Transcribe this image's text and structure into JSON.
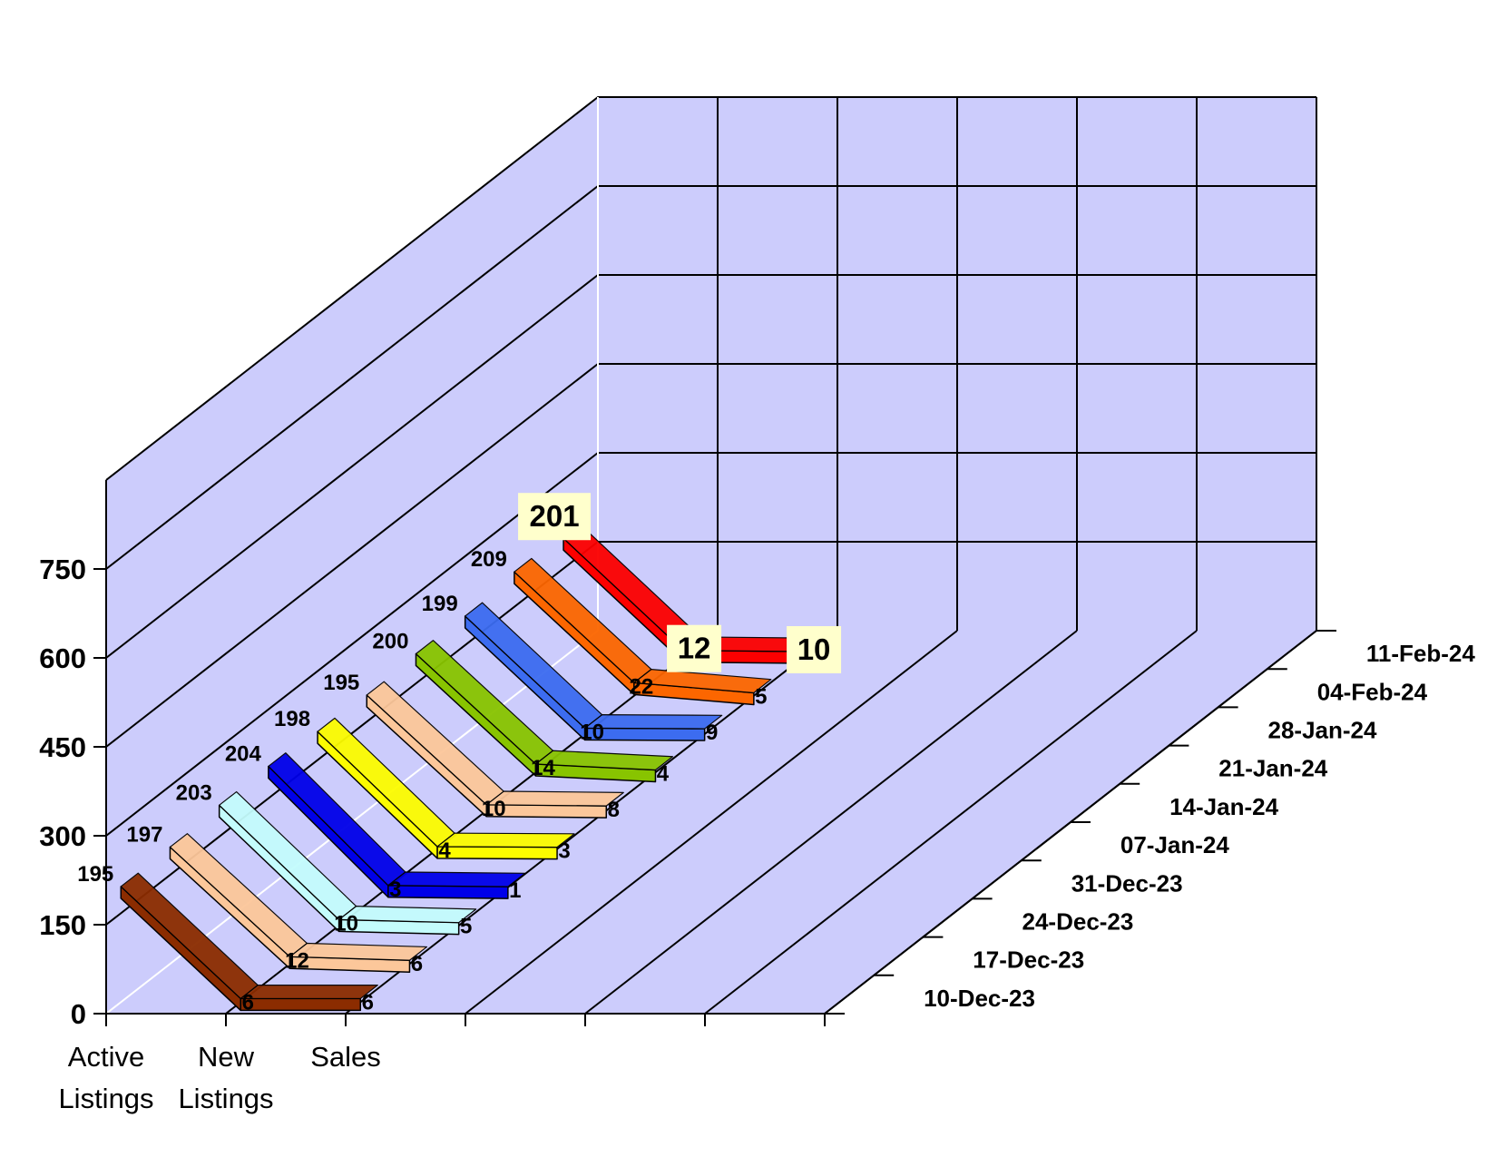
{
  "chart_data": {
    "type": "line",
    "title": "",
    "xlabel": "",
    "ylabel": "",
    "ylim": [
      0,
      900
    ],
    "y_ticks": [
      0,
      150,
      300,
      450,
      600,
      750
    ],
    "categories": [
      {
        "line1": "Active",
        "line2": "Listings"
      },
      {
        "line1": "New",
        "line2": "Listings"
      },
      {
        "line1": "Sales",
        "line2": ""
      }
    ],
    "grid": true,
    "colors": {
      "wall": "#ccccfc",
      "grid": "#000000",
      "front_grid": "#ffffff"
    },
    "series": [
      {
        "name": "10-Dec-23",
        "color": "#8b2c00",
        "values": [
          195,
          6,
          6
        ]
      },
      {
        "name": "17-Dec-23",
        "color": "#fcc79a",
        "values": [
          197,
          12,
          6
        ]
      },
      {
        "name": "24-Dec-23",
        "color": "#c4fcfc",
        "values": [
          203,
          10,
          5
        ]
      },
      {
        "name": "31-Dec-23",
        "color": "#0000e8",
        "values": [
          204,
          3,
          1
        ]
      },
      {
        "name": "07-Jan-24",
        "color": "#fcfc00",
        "values": [
          198,
          4,
          3
        ]
      },
      {
        "name": "14-Jan-24",
        "color": "#fcc79a",
        "values": [
          195,
          10,
          8
        ]
      },
      {
        "name": "21-Jan-24",
        "color": "#88c400",
        "values": [
          200,
          14,
          4
        ]
      },
      {
        "name": "28-Jan-24",
        "color": "#3c6cf0",
        "values": [
          199,
          10,
          9
        ]
      },
      {
        "name": "04-Feb-24",
        "color": "#fc6600",
        "values": [
          209,
          22,
          5
        ]
      },
      {
        "name": "11-Feb-24",
        "color": "#fc0000",
        "values": [
          201,
          12,
          10
        ],
        "highlight": true
      }
    ]
  }
}
